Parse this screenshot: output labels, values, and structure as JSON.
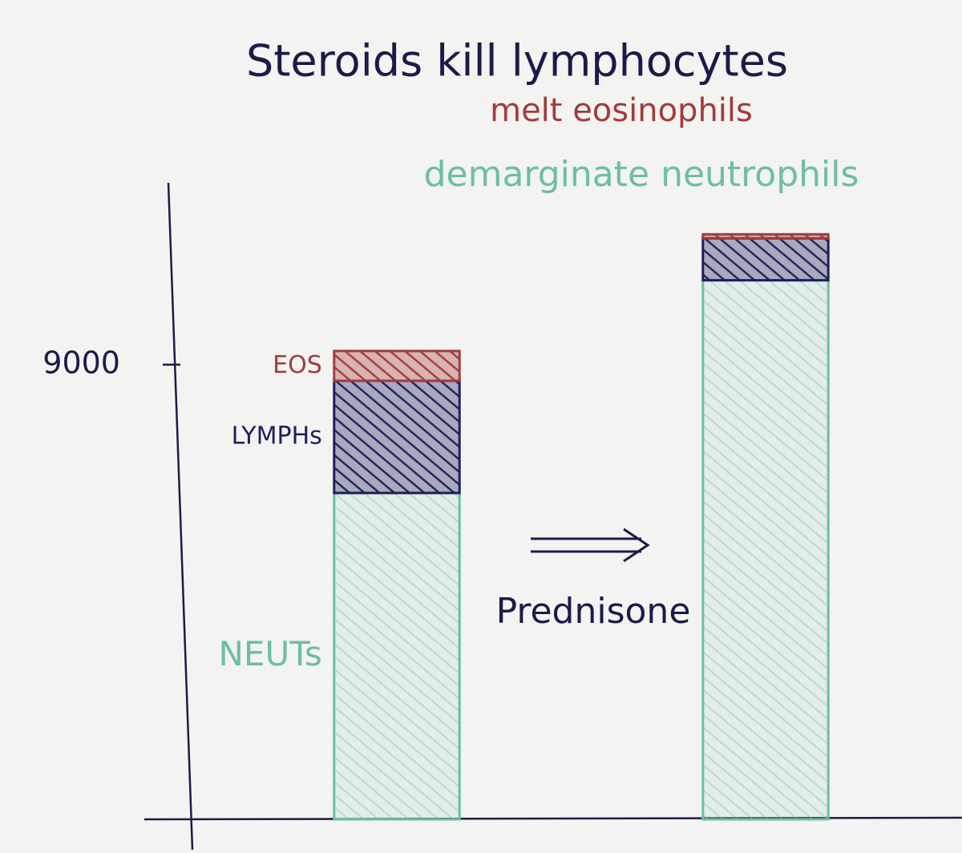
{
  "chart_data": {
    "type": "stacked_bar",
    "title": "Steroids kill lymphocytes",
    "annotations": [
      "melt eosinophils",
      "demarginate neutrophils",
      "Prednisone"
    ],
    "categories": [
      null,
      null
    ],
    "series": [
      {
        "name": "NEUTs",
        "color": "#6cbfa3",
        "values": [
          6460,
          10670
        ]
      },
      {
        "name": "LYMPHs",
        "color": "#1e1f5c",
        "values": [
          2220,
          830
        ]
      },
      {
        "name": "EOS",
        "color": "#a23b3b",
        "values": [
          590,
          80
        ]
      }
    ],
    "ylim": [
      0,
      12600
    ],
    "yticks": [
      9000
    ],
    "grid": false
  }
}
